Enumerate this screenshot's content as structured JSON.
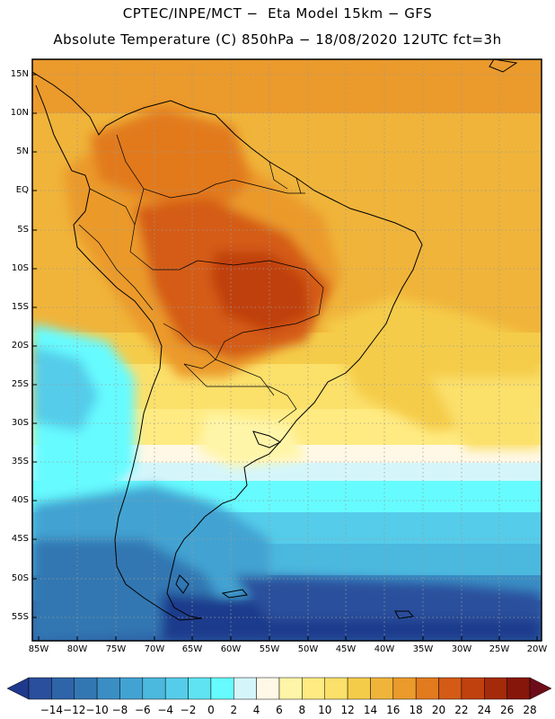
{
  "header": {
    "line1": "CPTEC/INPE/MCT −  Eta Model 15km − GFS",
    "line2": "Absolute Temperature (C) 850hPa − 18/08/2020 12UTC fct=3h"
  },
  "axes": {
    "lat_labels": [
      "15N",
      "10N",
      "5N",
      "EQ",
      "5S",
      "10S",
      "15S",
      "20S",
      "25S",
      "30S",
      "35S",
      "40S",
      "45S",
      "50S",
      "55S"
    ],
    "lon_labels": [
      "85W",
      "80W",
      "75W",
      "70W",
      "65W",
      "60W",
      "55W",
      "50W",
      "45W",
      "40W",
      "35W",
      "30W",
      "25W",
      "20W"
    ]
  },
  "colorbar": {
    "ticks": [
      "-14",
      "-12",
      "-10",
      "-8",
      "-6",
      "-4",
      "-2",
      "0",
      "2",
      "4",
      "6",
      "8",
      "10",
      "12",
      "14",
      "16",
      "18",
      "20",
      "22",
      "24",
      "26",
      "28"
    ],
    "colors": [
      "#1f3a8c",
      "#2a4f9c",
      "#2e64a8",
      "#3377b2",
      "#3a8ec4",
      "#42a3d2",
      "#4bb8de",
      "#55ccea",
      "#5fe3f2",
      "#66fbff",
      "#d4f6fb",
      "#fff8e6",
      "#fff5a8",
      "#ffeb82",
      "#fbe06a",
      "#f5cc4a",
      "#f0b43a",
      "#eb9a2c",
      "#e27a1e",
      "#d45b16",
      "#c0410e",
      "#a42a0a",
      "#86160a",
      "#6e0d1a"
    ]
  },
  "legend_aria": "temperature-scale"
}
